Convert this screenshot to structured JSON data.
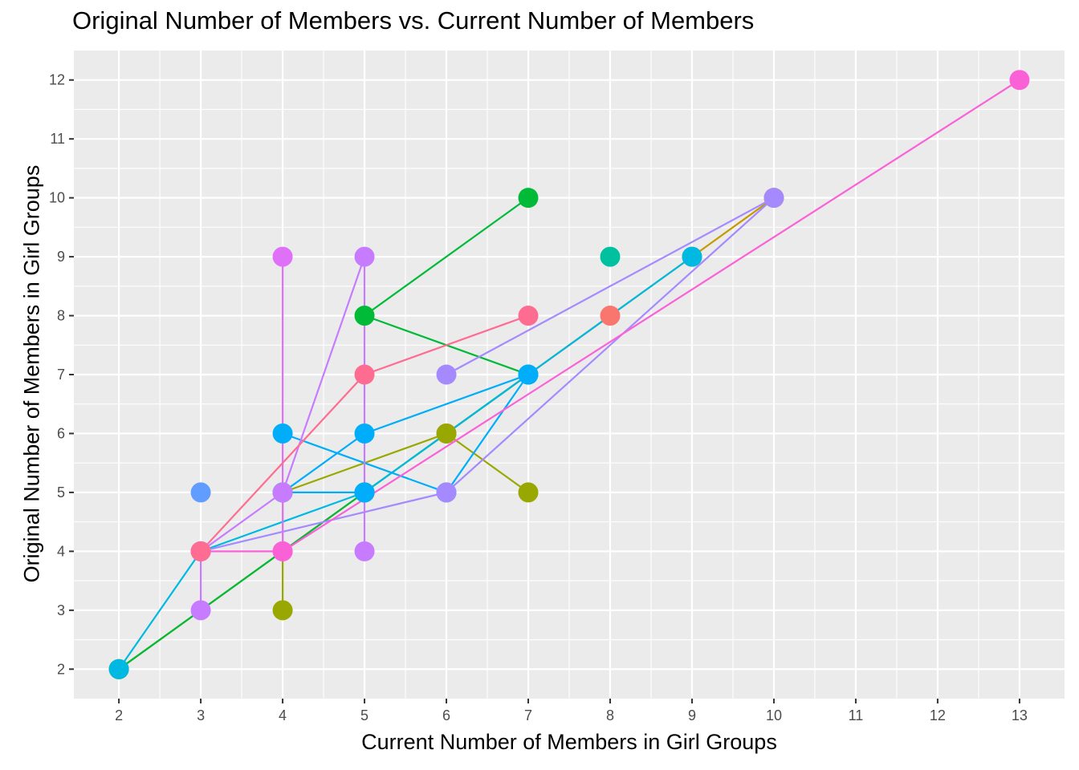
{
  "chart_data": {
    "type": "scatter",
    "title": "Original Number of Members vs. Current Number of Members",
    "xlabel": "Current Number of Members in Girl Groups",
    "ylabel": "Original Number of Members in Girl Groups",
    "xlim": [
      1.45,
      13.55
    ],
    "ylim": [
      1.5,
      12.5
    ],
    "x_ticks": [
      2,
      3,
      4,
      5,
      6,
      7,
      8,
      9,
      10,
      11,
      12,
      13
    ],
    "y_ticks": [
      2,
      3,
      4,
      5,
      6,
      7,
      8,
      9,
      10,
      11,
      12
    ],
    "grid": true,
    "legend": "none",
    "series": [
      {
        "color": "#F8766D",
        "points": [
          [
            6,
            6
          ],
          [
            8,
            8
          ]
        ]
      },
      {
        "color": "#C49A00",
        "points": [
          [
            2,
            2
          ],
          [
            5,
            5
          ],
          [
            9,
            9
          ],
          [
            10,
            10
          ]
        ]
      },
      {
        "color": "#99A800",
        "points": [
          [
            4,
            3
          ],
          [
            4,
            5
          ],
          [
            6,
            6
          ],
          [
            7,
            5
          ]
        ]
      },
      {
        "color": "#00BA38",
        "points": [
          [
            2,
            2
          ],
          [
            5,
            5
          ],
          [
            7,
            7
          ],
          [
            5,
            8
          ],
          [
            7,
            10
          ]
        ]
      },
      {
        "color": "#00C19F",
        "points": [
          [
            8,
            9
          ]
        ]
      },
      {
        "color": "#00B9E3",
        "points": [
          [
            2,
            2
          ],
          [
            3,
            4
          ],
          [
            5,
            5
          ],
          [
            7,
            7
          ],
          [
            9,
            9
          ]
        ]
      },
      {
        "color": "#00ADFA",
        "points": [
          [
            4,
            6
          ],
          [
            6,
            5
          ],
          [
            7,
            7
          ],
          [
            5,
            6
          ],
          [
            4,
            5
          ],
          [
            5,
            5
          ]
        ]
      },
      {
        "color": "#619CFF",
        "points": [
          [
            3,
            5
          ]
        ]
      },
      {
        "color": "#A58AFF",
        "points": [
          [
            3,
            4
          ],
          [
            6,
            5
          ],
          [
            10,
            10
          ],
          [
            6,
            7
          ]
        ]
      },
      {
        "color": "#C77CFF",
        "points": [
          [
            3,
            3
          ],
          [
            3,
            4
          ],
          [
            4,
            5
          ],
          [
            5,
            9
          ],
          [
            5,
            4
          ]
        ]
      },
      {
        "color": "#DF70F8",
        "points": [
          [
            4,
            4
          ],
          [
            4,
            9
          ]
        ]
      },
      {
        "color": "#FB61D7",
        "points": [
          [
            3,
            4
          ],
          [
            4,
            4
          ],
          [
            13,
            12
          ]
        ]
      },
      {
        "color": "#FF6C91",
        "points": [
          [
            3,
            4
          ],
          [
            5,
            7
          ],
          [
            7,
            8
          ]
        ]
      }
    ]
  }
}
